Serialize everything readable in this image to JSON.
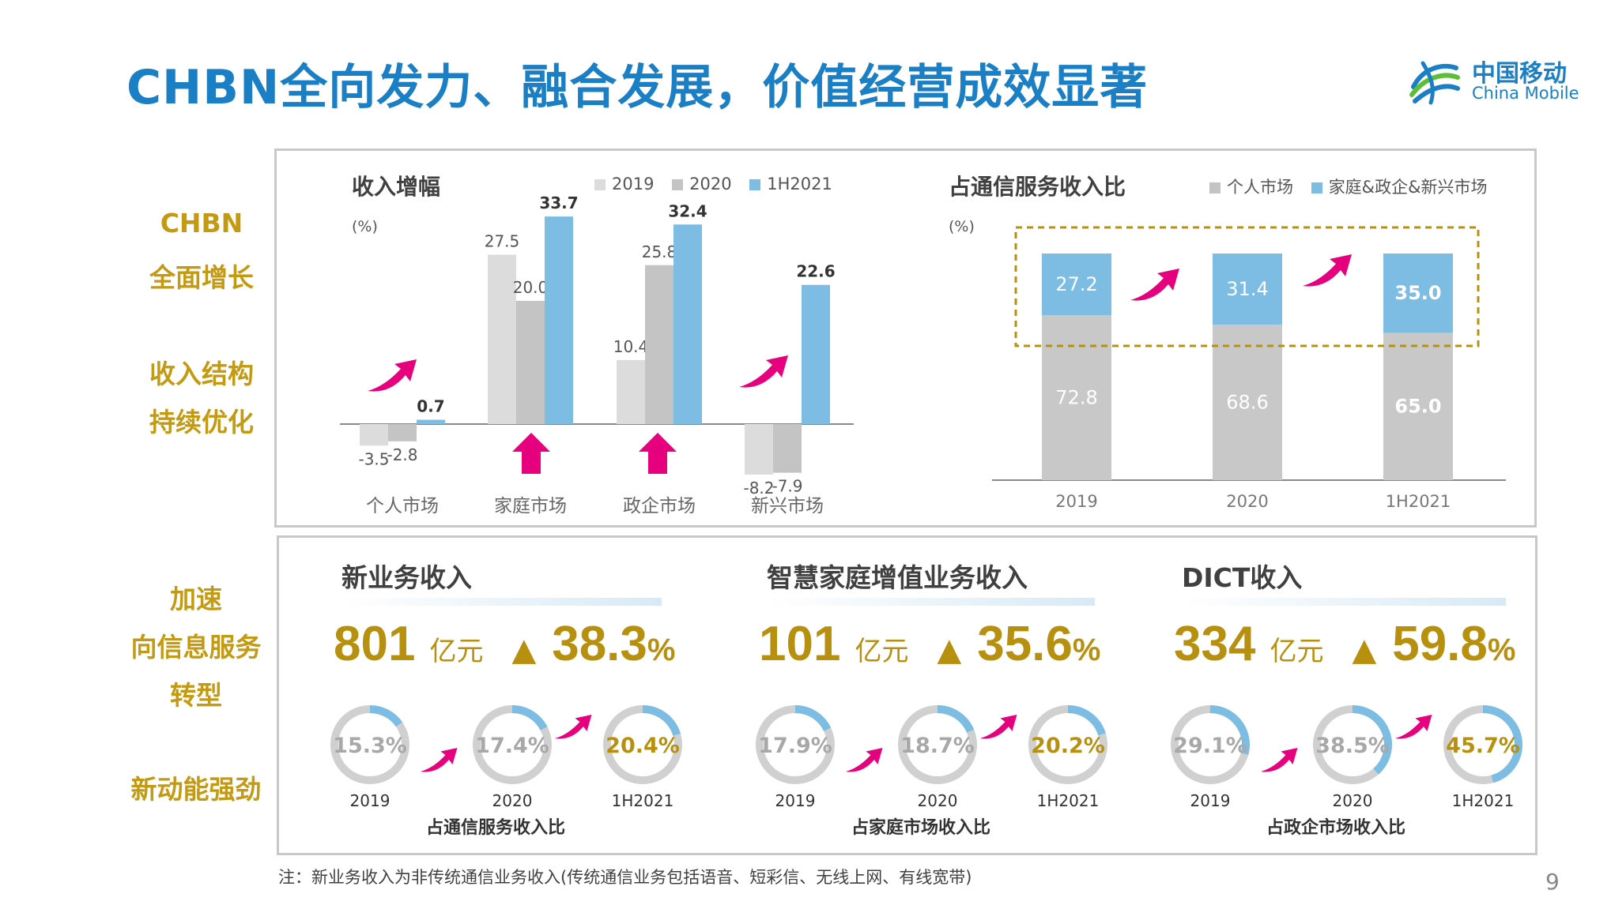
{
  "title": "CHBN全向发力、融合发展，价值经营成效显著",
  "logo": {
    "cn": "中国移动",
    "en": "China Mobile"
  },
  "side_labels": {
    "chbn": "CHBN",
    "full_growth": "全面增长",
    "structure": "收入结构",
    "optimize": "持续优化",
    "accelerate": "加速",
    "transform1": "向信息服务",
    "transform2": "转型",
    "new_momentum": "新动能强劲"
  },
  "colors": {
    "c2019": "#dcdcdc",
    "c2020": "#c4c4c4",
    "c1h2021": "#7ebde3",
    "accent_gold": "#b8900f",
    "arrow_pink": "#e6007e",
    "title_blue": "#1a7fc4"
  },
  "chart_data": [
    {
      "type": "bar",
      "title": "收入增幅",
      "unit": "(%)",
      "categories": [
        "个人市场",
        "家庭市场",
        "政企市场",
        "新兴市场"
      ],
      "series": [
        {
          "name": "2019",
          "values": [
            -3.5,
            27.5,
            10.4,
            -8.2
          ]
        },
        {
          "name": "2020",
          "values": [
            -2.8,
            20.0,
            25.8,
            -7.9
          ]
        },
        {
          "name": "1H2021",
          "values": [
            0.7,
            33.7,
            32.4,
            22.6
          ]
        }
      ],
      "value_labels": {
        "2019": [
          "-3.5",
          "27.5",
          "10.4",
          "-8.2"
        ],
        "2020": [
          "-2.8",
          "20.0",
          "25.8",
          "-7.9"
        ],
        "1H2021": [
          "0.7",
          "33.7",
          "32.4",
          "22.6"
        ]
      },
      "legend_position": "top-right"
    },
    {
      "type": "bar",
      "stacked": true,
      "title": "占通信服务收入比",
      "unit": "(%)",
      "categories": [
        "2019",
        "2020",
        "1H2021"
      ],
      "series": [
        {
          "name": "个人市场",
          "values": [
            72.8,
            68.6,
            65.0
          ]
        },
        {
          "name": "家庭&政企&新兴市场",
          "values": [
            27.2,
            31.4,
            35.0
          ]
        }
      ],
      "value_labels": {
        "个人市场": [
          "72.8",
          "68.6",
          "65.0"
        ],
        "家庭&政企&新兴市场": [
          "27.2",
          "31.4",
          "35.0"
        ]
      },
      "legend_position": "top-right"
    }
  ],
  "kpis": [
    {
      "title": "新业务收入",
      "value": "801",
      "unit": "亿元",
      "triangle": "▲",
      "growth": "38.3",
      "pct": "%",
      "ring_labels": [
        "15.3%",
        "17.4%",
        "20.4%"
      ],
      "ring_values": [
        15.3,
        17.4,
        20.4
      ],
      "years": [
        "2019",
        "2020",
        "1H2021"
      ],
      "caption": "占通信服务收入比"
    },
    {
      "title": "智慧家庭增值业务收入",
      "value": "101",
      "unit": "亿元",
      "triangle": "▲",
      "growth": "35.6",
      "pct": "%",
      "ring_labels": [
        "17.9%",
        "18.7%",
        "20.2%"
      ],
      "ring_values": [
        17.9,
        18.7,
        20.2
      ],
      "years": [
        "2019",
        "2020",
        "1H2021"
      ],
      "caption": "占家庭市场收入比"
    },
    {
      "title": "DICT收入",
      "value": "334",
      "unit": "亿元",
      "triangle": "▲",
      "growth": "59.8",
      "pct": "%",
      "ring_labels": [
        "29.1%",
        "38.5%",
        "45.7%"
      ],
      "ring_values": [
        29.1,
        38.5,
        45.7
      ],
      "years": [
        "2019",
        "2020",
        "1H2021"
      ],
      "caption": "占政企市场收入比"
    }
  ],
  "footnote": "注：新业务收入为非传统通信业务收入(传统通信业务包括语音、短彩信、无线上网、有线宽带)",
  "page_number": "9"
}
